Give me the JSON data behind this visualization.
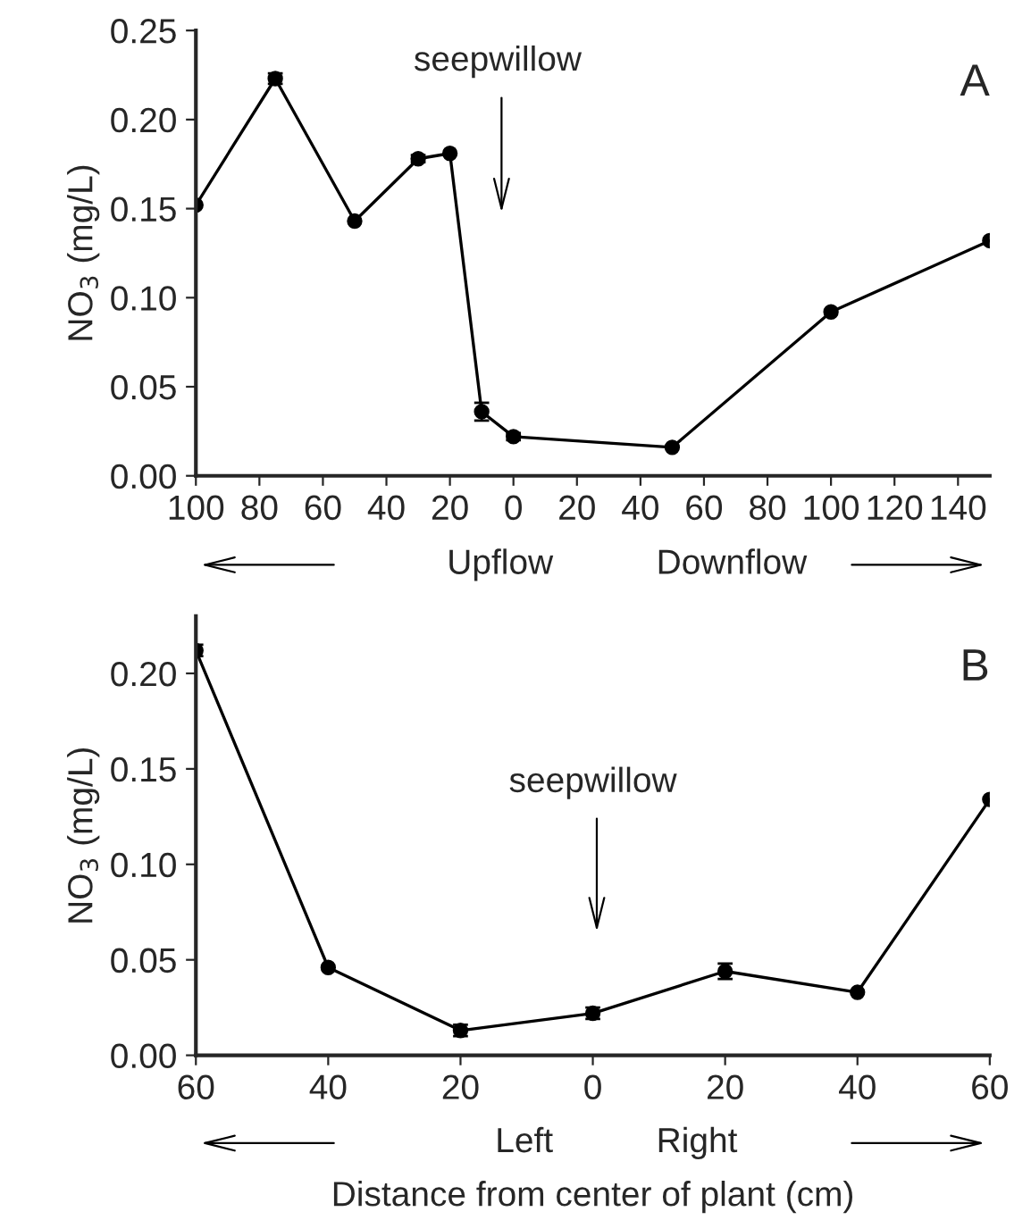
{
  "chart_data": [
    {
      "type": "line",
      "ylabel": "NO$_{3}$ (mg/L)",
      "marker": "circle",
      "line_style": "solid",
      "x": [
        -100,
        -75,
        -50,
        -30,
        -20,
        -10,
        0,
        50,
        100,
        150
      ],
      "series": [
        {
          "color": "#000000",
          "values": [
            0.152,
            0.223,
            0.143,
            0.178,
            0.181,
            0.036,
            0.022,
            0.016,
            0.092,
            0.132
          ],
          "errors": [
            null,
            0.003,
            null,
            0.002,
            null,
            0.005,
            0.002,
            null,
            null,
            null
          ]
        }
      ],
      "xlim": [
        -100,
        150
      ],
      "xticks": [
        {
          "value": -100,
          "label": "100"
        },
        {
          "value": -80,
          "label": "80"
        },
        {
          "value": -60,
          "label": "60"
        },
        {
          "value": -40,
          "label": "40"
        },
        {
          "value": -20,
          "label": "20"
        },
        {
          "value": 0,
          "label": "0"
        },
        {
          "value": 20,
          "label": "20"
        },
        {
          "value": 40,
          "label": "40"
        },
        {
          "value": 60,
          "label": "60"
        },
        {
          "value": 80,
          "label": "80"
        },
        {
          "value": 100,
          "label": "100"
        },
        {
          "value": 120,
          "label": "120"
        },
        {
          "value": 140,
          "label": "140"
        }
      ],
      "ylim": [
        0,
        0.25
      ],
      "yticks": [
        {
          "value": 0,
          "label": "0.00"
        },
        {
          "value": 0.05,
          "label": "0.05"
        },
        {
          "value": 0.1,
          "label": "0.10"
        },
        {
          "value": 0.15,
          "label": "0.15"
        },
        {
          "value": 0.2,
          "label": "0.20"
        },
        {
          "value": 0.25,
          "label": "0.25"
        }
      ],
      "annotations": [
        "seepwillow",
        "A",
        "Upflow",
        "Downflow"
      ]
    },
    {
      "type": "line",
      "ylabel": "NO$_{3}$ (mg/L)",
      "xlabel": "Distance from center of plant (cm)",
      "marker": "circle",
      "line_style": "solid",
      "x": [
        -60,
        -40,
        -20,
        0,
        20,
        40,
        60
      ],
      "series": [
        {
          "color": "#000000",
          "values": [
            0.212,
            0.046,
            0.013,
            0.022,
            0.044,
            0.033,
            0.134
          ],
          "errors": [
            0.003,
            null,
            0.003,
            0.003,
            0.004,
            null,
            null
          ]
        }
      ],
      "xlim": [
        -60,
        60
      ],
      "xticks": [
        {
          "value": -60,
          "label": "60"
        },
        {
          "value": -40,
          "label": "40"
        },
        {
          "value": -20,
          "label": "20"
        },
        {
          "value": 0,
          "label": "0"
        },
        {
          "value": 20,
          "label": "20"
        },
        {
          "value": 40,
          "label": "40"
        },
        {
          "value": 60,
          "label": "60"
        }
      ],
      "ylim": [
        0,
        0.23
      ],
      "yticks": [
        {
          "value": 0,
          "label": "0.00"
        },
        {
          "value": 0.05,
          "label": "0.05"
        },
        {
          "value": 0.1,
          "label": "0.10"
        },
        {
          "value": 0.15,
          "label": "0.15"
        },
        {
          "value": 0.2,
          "label": "0.20"
        }
      ],
      "annotations": [
        "seepwillow",
        "B",
        "Left",
        "Right"
      ]
    }
  ]
}
